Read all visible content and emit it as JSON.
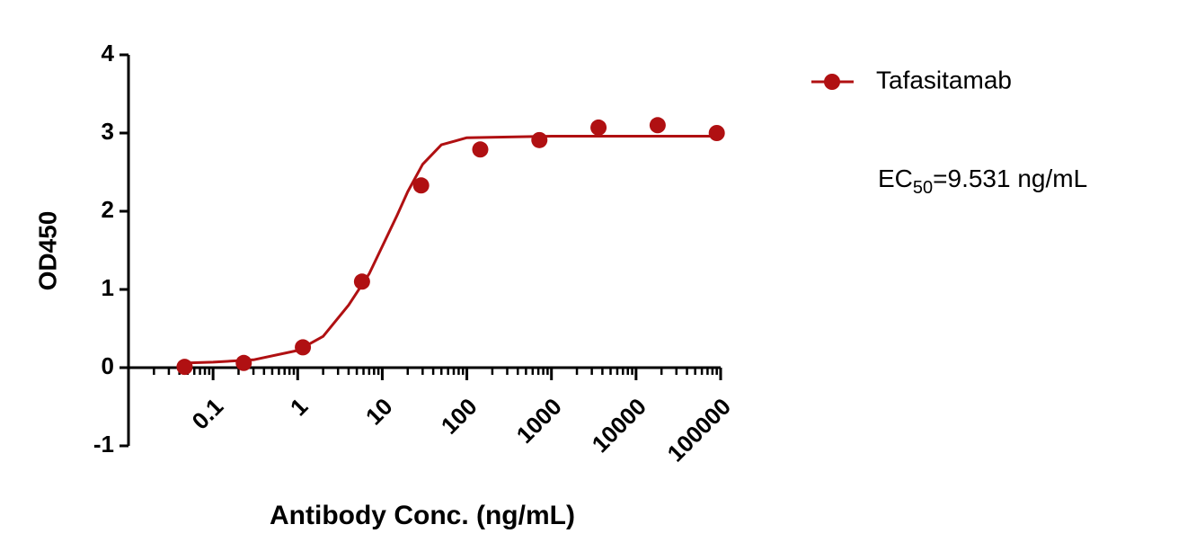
{
  "chart_data": {
    "type": "scatter",
    "x_label": "Antibody Conc. (ng/mL)",
    "y_label": "OD450",
    "x_log": true,
    "xlim": [
      0.01,
      100000
    ],
    "xticks": [
      0.1,
      1,
      10,
      100,
      1000,
      10000,
      100000
    ],
    "ylim": [
      -1,
      4
    ],
    "yticks": [
      -1,
      0,
      1,
      2,
      3,
      4
    ],
    "minor_ticks": true,
    "legend": "top-right",
    "series": [
      {
        "name": "Tafasitamab",
        "color": "#b01012",
        "x": [
          0.04608,
          0.2304,
          1.152,
          5.76,
          28.8,
          144,
          720,
          3600,
          18000,
          90000
        ],
        "values": [
          0.01,
          0.06,
          0.26,
          1.1,
          2.33,
          2.79,
          2.91,
          3.07,
          3.1,
          3.0
        ],
        "curve_x": [
          0.05,
          0.1,
          0.3,
          1,
          2,
          4,
          7,
          10,
          15,
          20,
          30,
          50,
          100,
          1000,
          100000
        ],
        "curve_values": [
          0.06,
          0.07,
          0.1,
          0.22,
          0.4,
          0.8,
          1.2,
          1.55,
          1.95,
          2.25,
          2.6,
          2.85,
          2.94,
          2.96,
          2.96
        ]
      }
    ],
    "annotation": {
      "prefix": "EC",
      "subscript": "50",
      "suffix": "=9.531 ng/mL"
    }
  }
}
